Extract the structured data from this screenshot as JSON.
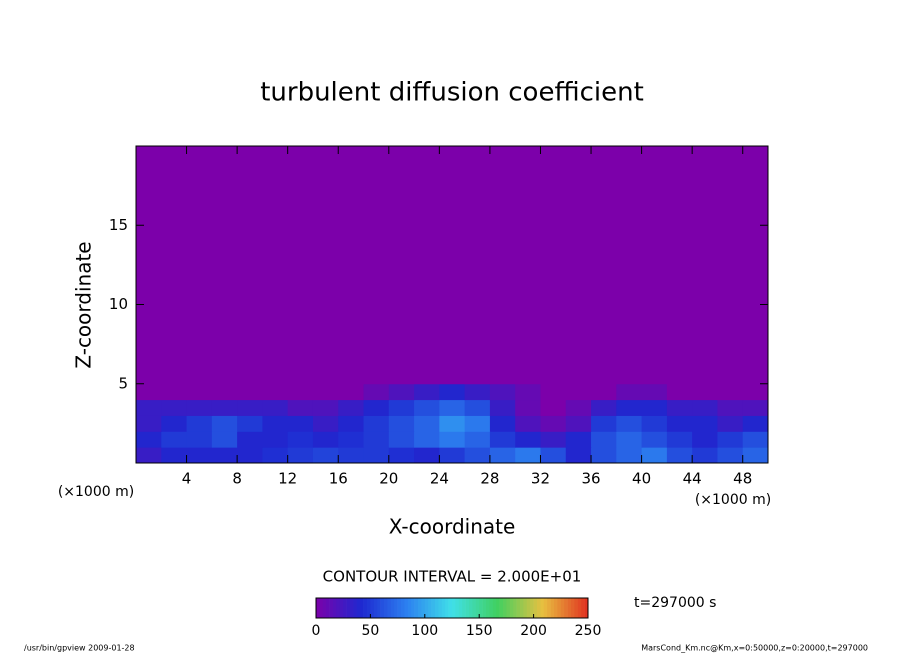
{
  "chart_data": {
    "type": "heatmap",
    "title": "turbulent diffusion coefficient",
    "x_label": "X-coordinate",
    "y_label": "Z-coordinate",
    "x_unit_left": "(×1000 m)",
    "x_unit_right": "(×1000 m)",
    "contour_note": "CONTOUR INTERVAL = 2.000E+01",
    "time_note": "t=297000 s",
    "footer_left": "/usr/bin/gpview   2009-01-28",
    "footer_right": "MarsCond_Km.nc@Km,x=0:50000,z=0:20000,t=297000",
    "xlim": [
      0,
      50
    ],
    "ylim": [
      0,
      20
    ],
    "xticks": [
      4,
      8,
      12,
      16,
      20,
      24,
      28,
      32,
      36,
      40,
      44,
      48
    ],
    "yticks": [
      5,
      10,
      15
    ],
    "xbins": [
      0,
      2,
      4,
      6,
      8,
      10,
      12,
      14,
      16,
      18,
      20,
      22,
      24,
      26,
      28,
      30,
      32,
      34,
      36,
      38,
      40,
      42,
      44,
      46,
      48,
      50
    ],
    "ybins": [
      0,
      1,
      2,
      3,
      4,
      5,
      20
    ],
    "values": [
      [
        30,
        40,
        40,
        40,
        40,
        45,
        50,
        55,
        50,
        50,
        45,
        40,
        50,
        60,
        70,
        80,
        60,
        40,
        60,
        70,
        80,
        60,
        50,
        60,
        70
      ],
      [
        40,
        50,
        50,
        60,
        40,
        40,
        45,
        40,
        45,
        50,
        60,
        70,
        80,
        70,
        50,
        40,
        30,
        40,
        60,
        70,
        60,
        50,
        40,
        50,
        60
      ],
      [
        30,
        40,
        50,
        60,
        50,
        40,
        40,
        30,
        40,
        50,
        60,
        70,
        90,
        80,
        40,
        20,
        10,
        20,
        50,
        60,
        50,
        40,
        40,
        30,
        40
      ],
      [
        30,
        30,
        30,
        30,
        30,
        30,
        20,
        20,
        30,
        40,
        50,
        60,
        70,
        60,
        30,
        10,
        0,
        10,
        30,
        40,
        40,
        30,
        30,
        20,
        20
      ],
      [
        0,
        0,
        0,
        0,
        0,
        0,
        0,
        0,
        0,
        10,
        20,
        30,
        40,
        30,
        20,
        10,
        0,
        0,
        0,
        10,
        10,
        0,
        0,
        0,
        0
      ],
      [
        0,
        0,
        0,
        0,
        0,
        0,
        0,
        0,
        0,
        0,
        0,
        0,
        0,
        0,
        0,
        0,
        0,
        0,
        0,
        0,
        0,
        0,
        0,
        0,
        0
      ]
    ],
    "colorbar_lim": [
      0,
      250
    ],
    "colorbar_ticks": [
      0,
      50,
      100,
      150,
      200,
      250
    ],
    "colormap": [
      "#7c00aa",
      "#1e28d0",
      "#2c80f0",
      "#40e0e8",
      "#40d060",
      "#e8c040",
      "#e03020"
    ]
  }
}
